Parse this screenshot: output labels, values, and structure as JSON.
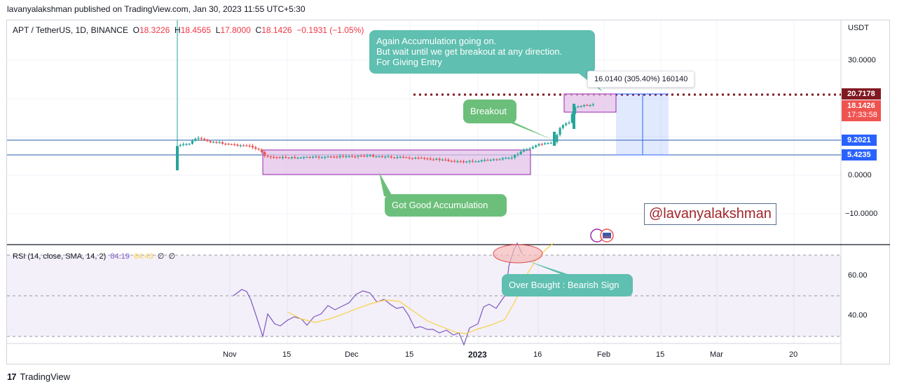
{
  "header": {
    "published_text": "lavanyalakshman published on TradingView.com, Jan 30, 2023 11:55 UTC+5:30"
  },
  "legend": {
    "symbol": "APT / TetherUS, 1D, BINANCE",
    "o_label": "O",
    "o": "18.3226",
    "h_label": "H",
    "h": "18.4565",
    "l_label": "L",
    "l": "17.8000",
    "c_label": "C",
    "c": "18.1426",
    "change": "−0.1931 (−1.05%)"
  },
  "rsi_legend": {
    "label": "RSI (14, close, SMA, 14, 2)",
    "rsi": "84.19",
    "sma": "84.43",
    "z1": "∅",
    "z2": "∅"
  },
  "price_axis": {
    "currency": "USDT",
    "ticks": [
      "30.0000",
      "0.0000",
      "−10.0000"
    ],
    "tags": {
      "level_high": "20.7178",
      "last": "18.1426",
      "countdown": "17:33:58",
      "level_mid": "9.2021",
      "level_low": "5.4235"
    }
  },
  "rsi_axis": {
    "ticks": [
      "60.00",
      "40.00"
    ]
  },
  "time_axis": [
    "Nov",
    "15",
    "Dec",
    "15",
    "2023",
    "16",
    "Feb",
    "15",
    "Mar",
    "20"
  ],
  "annotations": {
    "accumulation_top": [
      "Again Accumulation going on.",
      "But wait until we get breakout at any direction.",
      "For Giving Entry"
    ],
    "breakout": "Breakout",
    "good_accumulation": "Got Good Accumulation",
    "overbought": "Over Bought : Bearish Sign",
    "measure": "16.0140 (305.40%) 160140",
    "handle": "@lavanyalakshman"
  },
  "footer": {
    "brand": "TradingView",
    "logo": "17"
  },
  "colors": {
    "up": "#26a69a",
    "down": "#ef5350",
    "rsi": "#7e57c2",
    "rsi_sma": "#f7d14a",
    "callout": "#5fbfb0",
    "callout_green": "#6cbf7a",
    "level_tag": "#2962ff",
    "dark_red": "#801922"
  },
  "chart_data": {
    "type": "candlestick",
    "symbol": "APT / TetherUS",
    "interval": "1D",
    "exchange": "BINANCE",
    "ohlc_last": {
      "open": 18.3226,
      "high": 18.4565,
      "low": 17.8,
      "close": 18.1426
    },
    "price_levels": [
      20.7178,
      9.2021,
      5.4235
    ],
    "ylim": [
      -15,
      38
    ],
    "rsi": {
      "length": 14,
      "last": 84.19,
      "sma_last": 84.43,
      "bands": [
        70,
        50,
        30
      ]
    },
    "x_ticks": [
      "Nov",
      "15",
      "Dec",
      "15",
      "2023",
      "16",
      "Feb",
      "15",
      "Mar",
      "20"
    ]
  }
}
